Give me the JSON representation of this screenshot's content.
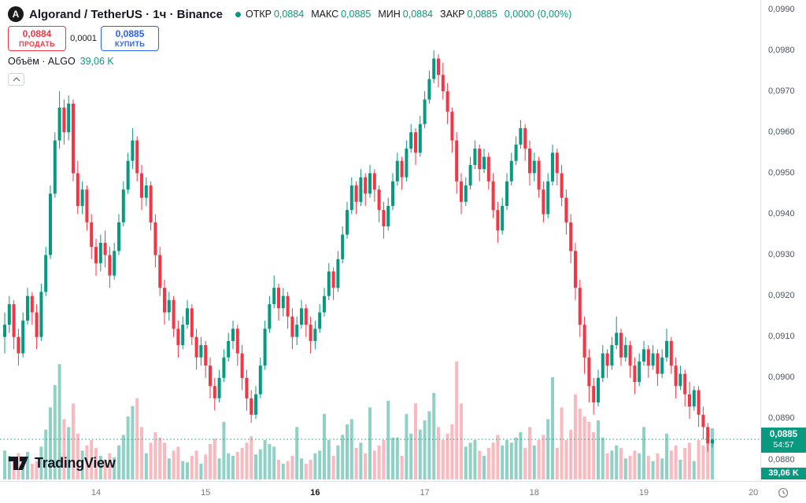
{
  "header": {
    "symbol_title": "Algorand / TetherUS · 1ч · Binance",
    "ohlc": {
      "open_label": "ОТКР",
      "open": "0,0884",
      "high_label": "МАКС",
      "high": "0,0885",
      "low_label": "МИН",
      "low": "0,0884",
      "close_label": "ЗАКР",
      "close": "0,0885",
      "change": "0,0000 (0,00%)"
    }
  },
  "trade_panel": {
    "sell_price": "0,0884",
    "sell_label": "ПРОДАТЬ",
    "spread": "0,0001",
    "buy_price": "0,0885",
    "buy_label": "КУПИТЬ"
  },
  "volume_legend": {
    "label": "Объём · ALGO",
    "value": "39,06 K"
  },
  "price_badge": {
    "price": "0,0885",
    "countdown": "54:57"
  },
  "volume_badge": "39,06 K",
  "footer": {
    "brand": "TradingView"
  },
  "colors": {
    "up": "#089981",
    "down": "#f23645",
    "buy": "#2962ff",
    "vol_up": "#089981",
    "vol_down": "#f23645",
    "axis_text": "#4c525e",
    "time_text": "#787b86"
  },
  "price_axis": {
    "ticks": [
      {
        "v": 990,
        "label": "0,0990"
      },
      {
        "v": 980,
        "label": "0,0980"
      },
      {
        "v": 970,
        "label": "0,0970"
      },
      {
        "v": 960,
        "label": "0,0960"
      },
      {
        "v": 950,
        "label": "0,0950"
      },
      {
        "v": 940,
        "label": "0,0940"
      },
      {
        "v": 930,
        "label": "0,0930"
      },
      {
        "v": 920,
        "label": "0,0920"
      },
      {
        "v": 910,
        "label": "0,0910"
      },
      {
        "v": 900,
        "label": "0,0900"
      },
      {
        "v": 890,
        "label": "0,0890"
      },
      {
        "v": 880,
        "label": "0,0880"
      }
    ]
  },
  "time_axis": {
    "labels": [
      {
        "text": "14",
        "index": 20,
        "bold": false
      },
      {
        "text": "15",
        "index": 44,
        "bold": false
      },
      {
        "text": "16",
        "index": 68,
        "bold": true
      },
      {
        "text": "17",
        "index": 92,
        "bold": false
      },
      {
        "text": "18",
        "index": 116,
        "bold": false
      },
      {
        "text": "19",
        "index": 140,
        "bold": false
      },
      {
        "text": "20",
        "index": 164,
        "bold": false
      }
    ]
  },
  "chart_data": {
    "type": "candlestick",
    "symbol": "Algorand / TetherUS",
    "interval": "1ч",
    "exchange": "Binance",
    "title": "Algorand / TetherUS · 1ч · Binance",
    "price_unit": 0.0001,
    "volume_unit": "K",
    "ylim": [
      0.088,
      0.099
    ],
    "x_day_labels": [
      "14",
      "15",
      "16",
      "17",
      "18",
      "19",
      "20"
    ],
    "last_close_units": 885,
    "candles_format": [
      "open",
      "high",
      "low",
      "close",
      "volume_k"
    ],
    "candles": [
      [
        910,
        916,
        906,
        913,
        22
      ],
      [
        913,
        920,
        911,
        918,
        18
      ],
      [
        918,
        919,
        907,
        910,
        15
      ],
      [
        910,
        912,
        903,
        906,
        20
      ],
      [
        906,
        916,
        905,
        914,
        17
      ],
      [
        914,
        922,
        913,
        920,
        21
      ],
      [
        920,
        921,
        913,
        916,
        12
      ],
      [
        916,
        918,
        907,
        910,
        14
      ],
      [
        910,
        923,
        909,
        921,
        25
      ],
      [
        921,
        932,
        920,
        930,
        38
      ],
      [
        930,
        947,
        929,
        945,
        55
      ],
      [
        945,
        960,
        944,
        958,
        72
      ],
      [
        958,
        970,
        956,
        966,
        88
      ],
      [
        966,
        968,
        957,
        960,
        46
      ],
      [
        960,
        969,
        958,
        967,
        40
      ],
      [
        967,
        968,
        948,
        950,
        58
      ],
      [
        950,
        953,
        940,
        942,
        35
      ],
      [
        942,
        948,
        940,
        946,
        22
      ],
      [
        946,
        947,
        936,
        938,
        26
      ],
      [
        938,
        940,
        929,
        932,
        30
      ],
      [
        932,
        934,
        925,
        928,
        24
      ],
      [
        928,
        935,
        926,
        933,
        18
      ],
      [
        933,
        936,
        927,
        930,
        15
      ],
      [
        930,
        932,
        922,
        925,
        20
      ],
      [
        925,
        933,
        924,
        931,
        17
      ],
      [
        931,
        940,
        930,
        938,
        26
      ],
      [
        938,
        948,
        937,
        946,
        34
      ],
      [
        946,
        955,
        945,
        953,
        48
      ],
      [
        953,
        961,
        951,
        958,
        56
      ],
      [
        958,
        959,
        948,
        950,
        62
      ],
      [
        950,
        952,
        941,
        944,
        40
      ],
      [
        944,
        949,
        942,
        947,
        20
      ],
      [
        947,
        948,
        936,
        938,
        28
      ],
      [
        938,
        940,
        927,
        930,
        36
      ],
      [
        930,
        932,
        920,
        922,
        32
      ],
      [
        922,
        924,
        913,
        916,
        28
      ],
      [
        916,
        921,
        914,
        919,
        16
      ],
      [
        919,
        920,
        910,
        912,
        22
      ],
      [
        912,
        914,
        905,
        908,
        25
      ],
      [
        908,
        915,
        907,
        913,
        14
      ],
      [
        913,
        919,
        912,
        917,
        13
      ],
      [
        917,
        918,
        908,
        910,
        18
      ],
      [
        910,
        912,
        902,
        905,
        22
      ],
      [
        905,
        910,
        903,
        908,
        12
      ],
      [
        908,
        909,
        900,
        903,
        19
      ],
      [
        903,
        905,
        895,
        898,
        27
      ],
      [
        898,
        900,
        892,
        895,
        31
      ],
      [
        895,
        902,
        894,
        900,
        16
      ],
      [
        900,
        907,
        899,
        905,
        44
      ],
      [
        905,
        911,
        904,
        909,
        20
      ],
      [
        909,
        914,
        907,
        912,
        18
      ],
      [
        912,
        913,
        903,
        906,
        21
      ],
      [
        906,
        908,
        897,
        900,
        24
      ],
      [
        900,
        902,
        892,
        895,
        28
      ],
      [
        895,
        897,
        889,
        891,
        33
      ],
      [
        891,
        898,
        890,
        896,
        19
      ],
      [
        896,
        905,
        895,
        903,
        23
      ],
      [
        903,
        914,
        902,
        912,
        30
      ],
      [
        912,
        920,
        911,
        918,
        27
      ],
      [
        918,
        925,
        917,
        922,
        25
      ],
      [
        922,
        923,
        914,
        917,
        15
      ],
      [
        917,
        922,
        915,
        920,
        12
      ],
      [
        920,
        921,
        912,
        915,
        14
      ],
      [
        915,
        917,
        907,
        910,
        18
      ],
      [
        910,
        915,
        908,
        913,
        40
      ],
      [
        913,
        919,
        912,
        917,
        16
      ],
      [
        917,
        918,
        910,
        913,
        12
      ],
      [
        913,
        915,
        906,
        909,
        15
      ],
      [
        909,
        914,
        907,
        912,
        20
      ],
      [
        912,
        918,
        911,
        916,
        22
      ],
      [
        916,
        922,
        915,
        920,
        50
      ],
      [
        920,
        928,
        919,
        926,
        30
      ],
      [
        926,
        927,
        919,
        922,
        18
      ],
      [
        922,
        931,
        921,
        929,
        26
      ],
      [
        929,
        937,
        928,
        935,
        34
      ],
      [
        935,
        943,
        934,
        941,
        42
      ],
      [
        941,
        949,
        940,
        947,
        46
      ],
      [
        947,
        948,
        940,
        943,
        24
      ],
      [
        943,
        951,
        942,
        949,
        28
      ],
      [
        949,
        950,
        942,
        945,
        20
      ],
      [
        945,
        952,
        944,
        950,
        55
      ],
      [
        950,
        951,
        943,
        946,
        22
      ],
      [
        946,
        947,
        938,
        941,
        26
      ],
      [
        941,
        943,
        934,
        937,
        30
      ],
      [
        937,
        944,
        936,
        942,
        60
      ],
      [
        942,
        950,
        941,
        948,
        32
      ],
      [
        948,
        955,
        947,
        953,
        32
      ],
      [
        953,
        954,
        946,
        949,
        18
      ],
      [
        949,
        958,
        948,
        956,
        50
      ],
      [
        956,
        962,
        955,
        960,
        35
      ],
      [
        960,
        961,
        952,
        955,
        58
      ],
      [
        955,
        964,
        954,
        962,
        38
      ],
      [
        962,
        970,
        961,
        968,
        45
      ],
      [
        968,
        975,
        967,
        973,
        52
      ],
      [
        973,
        980,
        972,
        978,
        66
      ],
      [
        978,
        979,
        971,
        974,
        40
      ],
      [
        974,
        977,
        968,
        970,
        30
      ],
      [
        970,
        972,
        962,
        965,
        35
      ],
      [
        965,
        966,
        955,
        958,
        42
      ],
      [
        958,
        960,
        945,
        948,
        90
      ],
      [
        948,
        950,
        940,
        943,
        58
      ],
      [
        943,
        949,
        942,
        947,
        25
      ],
      [
        947,
        954,
        946,
        952,
        28
      ],
      [
        952,
        958,
        951,
        956,
        30
      ],
      [
        956,
        957,
        948,
        951,
        22
      ],
      [
        951,
        956,
        950,
        954,
        18
      ],
      [
        954,
        955,
        946,
        948,
        24
      ],
      [
        948,
        950,
        939,
        941,
        28
      ],
      [
        941,
        943,
        933,
        936,
        34
      ],
      [
        936,
        944,
        935,
        942,
        26
      ],
      [
        942,
        950,
        941,
        948,
        30
      ],
      [
        948,
        955,
        947,
        953,
        28
      ],
      [
        953,
        959,
        952,
        957,
        32
      ],
      [
        957,
        963,
        956,
        961,
        36
      ],
      [
        961,
        962,
        953,
        956,
        24
      ],
      [
        956,
        958,
        947,
        950,
        40
      ],
      [
        950,
        955,
        948,
        953,
        26
      ],
      [
        953,
        954,
        944,
        946,
        30
      ],
      [
        946,
        948,
        938,
        940,
        34
      ],
      [
        940,
        950,
        939,
        948,
        46
      ],
      [
        948,
        957,
        947,
        955,
        78
      ],
      [
        955,
        956,
        947,
        950,
        24
      ],
      [
        950,
        952,
        942,
        944,
        55
      ],
      [
        944,
        946,
        935,
        938,
        30
      ],
      [
        938,
        940,
        928,
        931,
        38
      ],
      [
        931,
        933,
        919,
        922,
        65
      ],
      [
        922,
        924,
        910,
        913,
        54
      ],
      [
        913,
        915,
        901,
        905,
        48
      ],
      [
        905,
        907,
        894,
        898,
        44
      ],
      [
        898,
        900,
        891,
        894,
        36
      ],
      [
        894,
        902,
        893,
        900,
        45
      ],
      [
        900,
        908,
        899,
        906,
        32
      ],
      [
        906,
        907,
        900,
        903,
        20
      ],
      [
        903,
        910,
        902,
        908,
        22
      ],
      [
        908,
        915,
        907,
        911,
        26
      ],
      [
        911,
        912,
        903,
        905,
        24
      ],
      [
        905,
        910,
        904,
        908,
        16
      ],
      [
        908,
        909,
        900,
        903,
        18
      ],
      [
        903,
        905,
        896,
        899,
        22
      ],
      [
        899,
        906,
        898,
        904,
        20
      ],
      [
        904,
        909,
        903,
        907,
        40
      ],
      [
        907,
        908,
        900,
        903,
        18
      ],
      [
        903,
        908,
        902,
        906,
        14
      ],
      [
        906,
        907,
        898,
        901,
        20
      ],
      [
        901,
        907,
        900,
        905,
        16
      ],
      [
        905,
        912,
        904,
        909,
        35
      ],
      [
        909,
        910,
        901,
        903,
        22
      ],
      [
        903,
        905,
        895,
        898,
        26
      ],
      [
        898,
        903,
        897,
        901,
        15
      ],
      [
        901,
        902,
        893,
        896,
        24
      ],
      [
        896,
        899,
        890,
        893,
        28
      ],
      [
        893,
        898,
        892,
        897,
        14
      ],
      [
        897,
        898,
        888,
        891,
        30
      ],
      [
        891,
        893,
        885,
        888,
        26
      ],
      [
        888,
        889,
        882,
        884,
        34
      ],
      [
        884,
        885,
        883,
        885,
        39
      ]
    ]
  }
}
